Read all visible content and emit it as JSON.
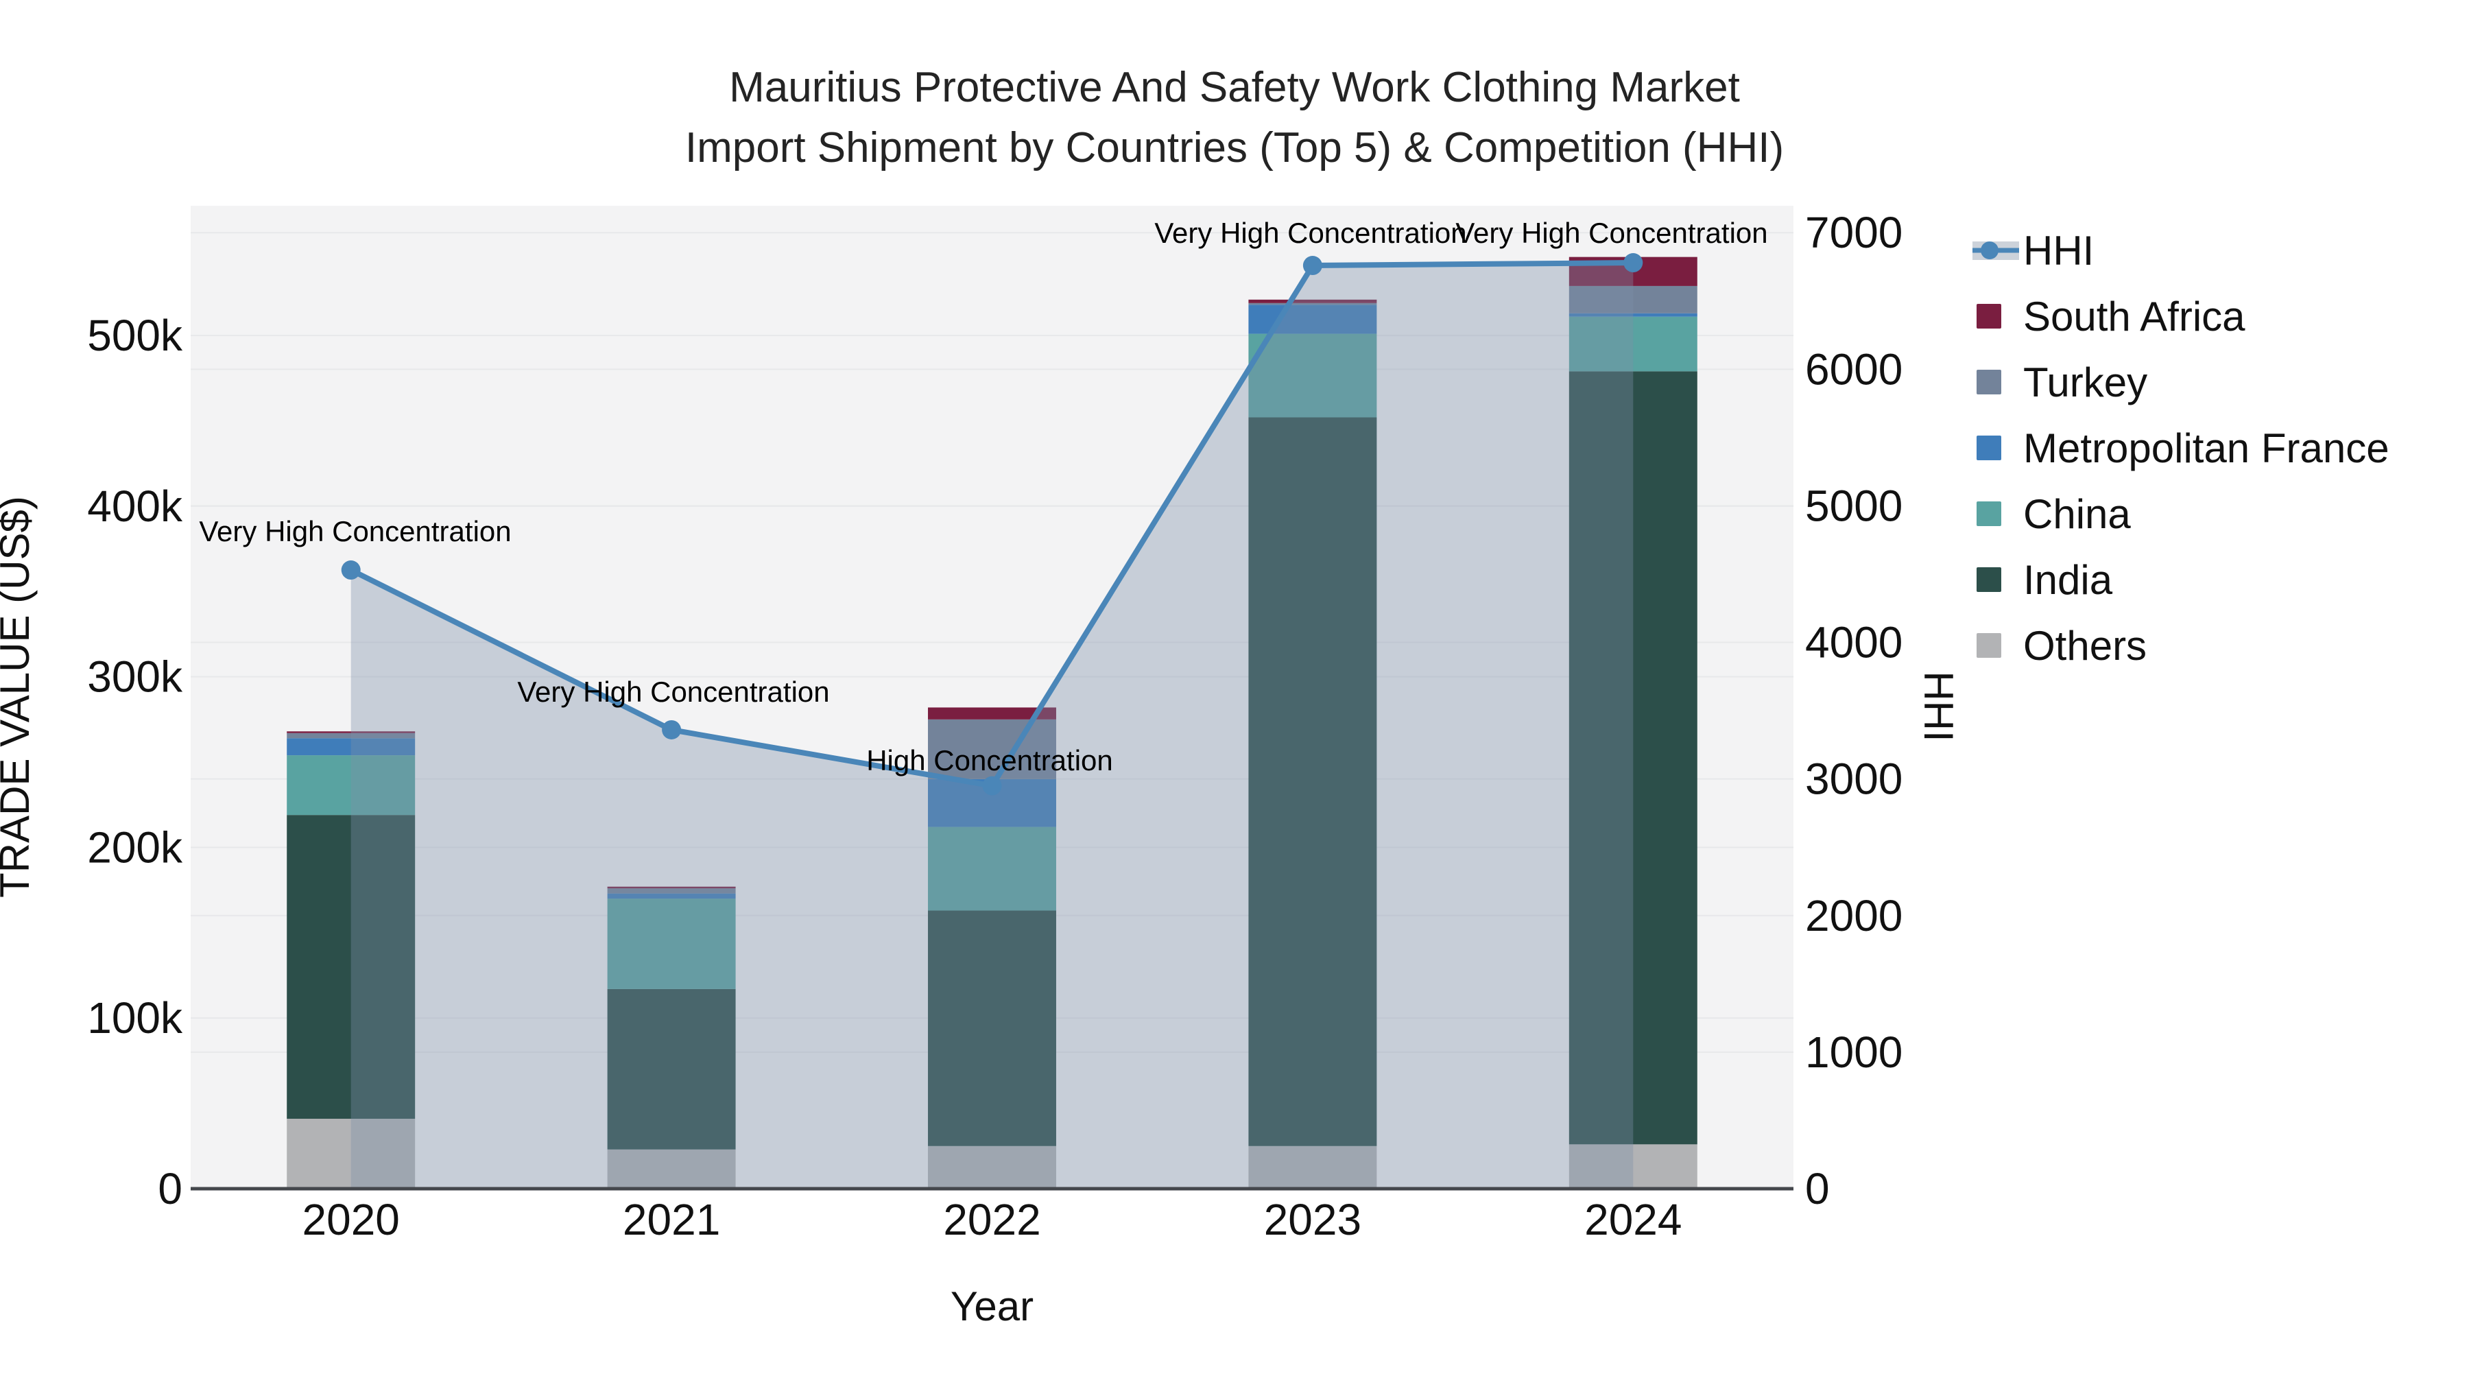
{
  "title": {
    "line1": "Mauritius Protective And Safety Work Clothing Market",
    "line2": "Import Shipment by Countries (Top 5) & Competition (HHI)"
  },
  "chart_data": {
    "type": "combo-stacked-bar-line",
    "categories": [
      "2020",
      "2021",
      "2022",
      "2023",
      "2024"
    ],
    "xlabel": "Year",
    "ylabel_left": "TRADE VALUE (US$)",
    "ylabel_right": "HHI",
    "y_left": {
      "tick_values": [
        0,
        100000,
        200000,
        300000,
        400000,
        500000
      ],
      "tick_labels": [
        "0",
        "100k",
        "200k",
        "300k",
        "400k",
        "500k"
      ],
      "max": 576000
    },
    "y_right": {
      "tick_values": [
        0,
        1000,
        2000,
        3000,
        4000,
        5000,
        6000,
        7000
      ],
      "tick_labels": [
        "0",
        "1000",
        "2000",
        "3000",
        "4000",
        "5000",
        "6000",
        "7000"
      ],
      "max": 7197
    },
    "series": [
      {
        "name": "Others",
        "color": "#b2b3b5",
        "values": [
          41000,
          23000,
          25000,
          25000,
          26000
        ]
      },
      {
        "name": "India",
        "color": "#2c4f4a",
        "values": [
          178000,
          94000,
          138000,
          427000,
          453000
        ]
      },
      {
        "name": "China",
        "color": "#59a3a1",
        "values": [
          35000,
          53000,
          49000,
          49000,
          32000
        ]
      },
      {
        "name": "Metropolitan France",
        "color": "#3f7dba",
        "values": [
          10000,
          3000,
          28000,
          17000,
          2000
        ]
      },
      {
        "name": "Turkey",
        "color": "#73839a",
        "values": [
          3000,
          3000,
          35000,
          1000,
          16000
        ]
      },
      {
        "name": "South Africa",
        "color": "#7a1e40",
        "values": [
          1000,
          1000,
          7000,
          2000,
          17000
        ]
      }
    ],
    "line_series": {
      "name": "HHI",
      "color": "#4a86b8",
      "area_fill": "rgba(125,145,168,0.37)",
      "values": [
        4530,
        3360,
        2950,
        6760,
        6780
      ]
    },
    "annotations": [
      {
        "text": "Very High Concentration",
        "x": 518,
        "y": 774
      },
      {
        "text": "Very High Concentration",
        "x": 982,
        "y": 1008
      },
      {
        "text": "High Concentration",
        "x": 1443,
        "y": 1108
      },
      {
        "text": "Very High Concentration",
        "x": 1911,
        "y": 339
      },
      {
        "text": "Very High Concentration",
        "x": 2350,
        "y": 339
      }
    ],
    "colors": {
      "plot_background": "#f3f3f4",
      "gridline": "#e7e8ea",
      "axis_line": "#44474c",
      "tick_text": "#111111",
      "annotation_text": "#000000"
    }
  },
  "legend": {
    "items": [
      {
        "label": "HHI",
        "type": "line",
        "color": "#4a86b8",
        "band": "#ccd2da"
      },
      {
        "label": "South Africa",
        "type": "bar",
        "color": "#7a1e40"
      },
      {
        "label": "Turkey",
        "type": "bar",
        "color": "#73839a"
      },
      {
        "label": "Metropolitan France",
        "type": "bar",
        "color": "#3f7dba"
      },
      {
        "label": "China",
        "type": "bar",
        "color": "#59a3a1"
      },
      {
        "label": "India",
        "type": "bar",
        "color": "#2c4f4a"
      },
      {
        "label": "Others",
        "type": "bar",
        "color": "#b2b3b5"
      }
    ]
  }
}
